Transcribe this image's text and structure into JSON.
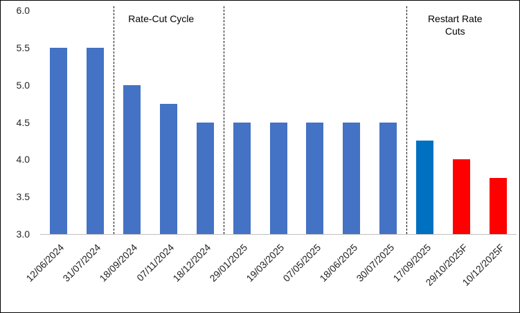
{
  "chart_data": {
    "type": "bar",
    "title": "",
    "xlabel": "",
    "ylabel": "",
    "categories": [
      "12/06/2024",
      "31/07/2024",
      "18/09/2024",
      "07/11/2024",
      "18/12/2024",
      "29/01/2025",
      "19/03/2025",
      "07/05/2025",
      "18/06/2025",
      "30/07/2025",
      "17/09/2025",
      "29/10/2025F",
      "10/12/2025F"
    ],
    "values": [
      5.5,
      5.5,
      5.0,
      4.75,
      4.5,
      4.5,
      4.5,
      4.5,
      4.5,
      4.5,
      4.25,
      4.0,
      3.75
    ],
    "bar_colors": [
      "#4472C4",
      "#4472C4",
      "#4472C4",
      "#4472C4",
      "#4472C4",
      "#4472C4",
      "#4472C4",
      "#4472C4",
      "#4472C4",
      "#4472C4",
      "#0070C0",
      "#FF0000",
      "#FF0000"
    ],
    "ylim": [
      3.0,
      6.0
    ],
    "ytick_labels": [
      "3.0",
      "3.5",
      "4.0",
      "4.5",
      "5.0",
      "5.5",
      "6.0"
    ],
    "grid": false,
    "legend": false,
    "dividers_after_index": [
      1,
      4,
      9
    ],
    "annotations": [
      {
        "id": "rate-cut-cycle",
        "lines": [
          "Rate-Cut Cycle"
        ],
        "x_frac": 0.254
      },
      {
        "id": "restart-rate-cuts",
        "lines": [
          "Restart Rate",
          "Cuts"
        ],
        "x_frac": 0.871
      }
    ]
  },
  "colors": {
    "bar_default": "#4472C4",
    "bar_current": "#0070C0",
    "bar_forecast": "#FF0000",
    "axis_line": "#BFBFBF",
    "divider_line": "#000000",
    "frame_border": "#000000",
    "background": "#FFFFFF"
  }
}
